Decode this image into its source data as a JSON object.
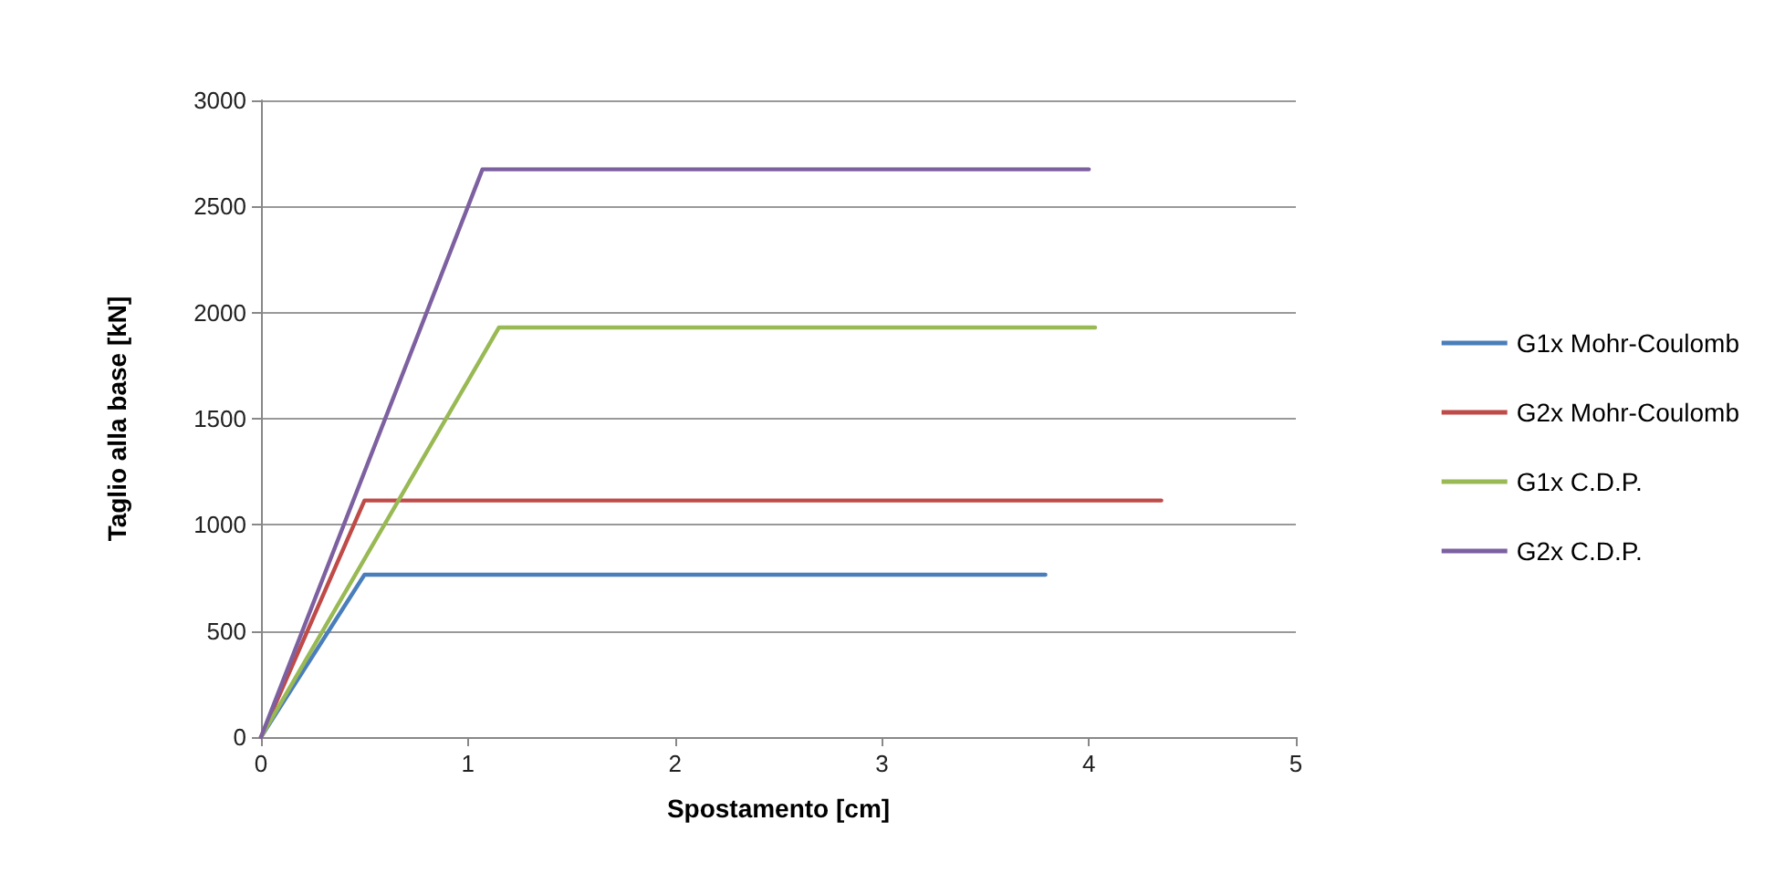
{
  "chart_data": {
    "type": "line",
    "xlabel": "Spostamento [cm]",
    "ylabel": "Taglio alla base [kN]",
    "xlim": [
      0,
      5
    ],
    "xticks": [
      0,
      1,
      2,
      3,
      4,
      5
    ],
    "ylim": [
      0,
      3000
    ],
    "yticks": [
      0,
      500,
      1000,
      1500,
      2000,
      2500,
      3000
    ],
    "grid": "y",
    "legend": "right",
    "marker": "none",
    "line_style": "solid",
    "series": [
      {
        "name": "G1x Mohr-Coulomb",
        "color": "#4a7ebb",
        "x": [
          0,
          0.5,
          3.79
        ],
        "values": [
          0,
          765,
          765
        ]
      },
      {
        "name": "G2x Mohr-Coulomb",
        "color": "#be4b48",
        "x": [
          0,
          0.5,
          4.35
        ],
        "values": [
          0,
          1115,
          1115
        ]
      },
      {
        "name": "G1x C.D.P.",
        "color": "#98b954",
        "x": [
          0,
          1.15,
          4.03
        ],
        "values": [
          0,
          1930,
          1930
        ]
      },
      {
        "name": "G2x C.D.P.",
        "color": "#7d60a0",
        "x": [
          0,
          1.07,
          4.0
        ],
        "values": [
          0,
          2675,
          2675
        ]
      }
    ]
  }
}
